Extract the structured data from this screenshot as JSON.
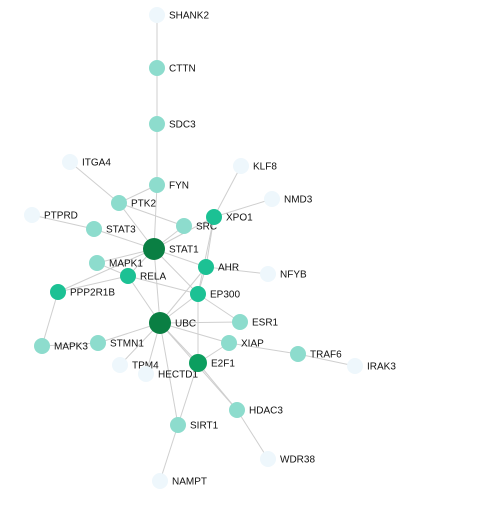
{
  "graph": {
    "level_colors": {
      "1": "#eef7fc",
      "2": "#8ddccd",
      "3": "#1cc194",
      "4": "#0c9e5f",
      "5": "#0a7f43"
    },
    "edge_color": "#cfcfcf",
    "nodes": [
      {
        "id": "SHANK2",
        "label": "SHANK2",
        "level": 1
      },
      {
        "id": "CTTN",
        "label": "CTTN",
        "level": 2
      },
      {
        "id": "SDC3",
        "label": "SDC3",
        "level": 2
      },
      {
        "id": "FYN",
        "label": "FYN",
        "level": 2
      },
      {
        "id": "ITGA4",
        "label": "ITGA4",
        "level": 1
      },
      {
        "id": "KLF8",
        "label": "KLF8",
        "level": 1
      },
      {
        "id": "NMD3",
        "label": "NMD3",
        "level": 1
      },
      {
        "id": "PTK2",
        "label": "PTK2",
        "level": 2
      },
      {
        "id": "PTPRD",
        "label": "PTPRD",
        "level": 1
      },
      {
        "id": "STAT3",
        "label": "STAT3",
        "level": 2
      },
      {
        "id": "SRC",
        "label": "SRC",
        "level": 2
      },
      {
        "id": "XPO1",
        "label": "XPO1",
        "level": 3
      },
      {
        "id": "STAT1",
        "label": "STAT1",
        "level": 5
      },
      {
        "id": "MAPK1",
        "label": "MAPK1",
        "level": 2
      },
      {
        "id": "AHR",
        "label": "AHR",
        "level": 3
      },
      {
        "id": "RELA",
        "label": "RELA",
        "level": 3
      },
      {
        "id": "NFYB",
        "label": "NFYB",
        "level": 1
      },
      {
        "id": "PPP2R1B",
        "label": "PPP2R1B",
        "level": 3
      },
      {
        "id": "EP300",
        "label": "EP300",
        "level": 3
      },
      {
        "id": "UBC",
        "label": "UBC",
        "level": 5
      },
      {
        "id": "ESR1",
        "label": "ESR1",
        "level": 2
      },
      {
        "id": "MAPK3",
        "label": "MAPK3",
        "level": 2
      },
      {
        "id": "STMN1",
        "label": "STMN1",
        "level": 2
      },
      {
        "id": "XIAP",
        "label": "XIAP",
        "level": 2
      },
      {
        "id": "TRAF6",
        "label": "TRAF6",
        "level": 2
      },
      {
        "id": "TPM4",
        "label": "TPM4",
        "level": 1
      },
      {
        "id": "HECTD1",
        "label": "HECTD1",
        "level": 1
      },
      {
        "id": "E2F1",
        "label": "E2F1",
        "level": 4
      },
      {
        "id": "IRAK3",
        "label": "IRAK3",
        "level": 1
      },
      {
        "id": "HDAC3",
        "label": "HDAC3",
        "level": 2
      },
      {
        "id": "SIRT1",
        "label": "SIRT1",
        "level": 2
      },
      {
        "id": "WDR38",
        "label": "WDR38",
        "level": 1
      },
      {
        "id": "NAMPT",
        "label": "NAMPT",
        "level": 1
      }
    ],
    "edges": [
      [
        "SHANK2",
        "CTTN"
      ],
      [
        "CTTN",
        "SDC3"
      ],
      [
        "SDC3",
        "FYN"
      ],
      [
        "FYN",
        "STAT1"
      ],
      [
        "FYN",
        "PTK2"
      ],
      [
        "ITGA4",
        "PTK2"
      ],
      [
        "PTK2",
        "STAT1"
      ],
      [
        "PTK2",
        "SRC"
      ],
      [
        "PTPRD",
        "STAT3"
      ],
      [
        "STAT3",
        "STAT1"
      ],
      [
        "SRC",
        "STAT1"
      ],
      [
        "XPO1",
        "STAT1"
      ],
      [
        "XPO1",
        "KLF8"
      ],
      [
        "XPO1",
        "NMD3"
      ],
      [
        "XPO1",
        "AHR"
      ],
      [
        "XPO1",
        "EP300"
      ],
      [
        "STAT1",
        "AHR"
      ],
      [
        "STAT1",
        "MAPK1"
      ],
      [
        "STAT1",
        "RELA"
      ],
      [
        "STAT1",
        "PPP2R1B"
      ],
      [
        "STAT1",
        "EP300"
      ],
      [
        "STAT1",
        "UBC"
      ],
      [
        "MAPK1",
        "RELA"
      ],
      [
        "AHR",
        "NFYB"
      ],
      [
        "AHR",
        "EP300"
      ],
      [
        "AHR",
        "UBC"
      ],
      [
        "RELA",
        "UBC"
      ],
      [
        "RELA",
        "EP300"
      ],
      [
        "PPP2R1B",
        "MAPK3"
      ],
      [
        "PPP2R1B",
        "RELA"
      ],
      [
        "EP300",
        "UBC"
      ],
      [
        "EP300",
        "E2F1"
      ],
      [
        "EP300",
        "ESR1"
      ],
      [
        "UBC",
        "STMN1"
      ],
      [
        "UBC",
        "TPM4"
      ],
      [
        "UBC",
        "HECTD1"
      ],
      [
        "UBC",
        "E2F1"
      ],
      [
        "UBC",
        "XIAP"
      ],
      [
        "UBC",
        "ESR1"
      ],
      [
        "UBC",
        "SIRT1"
      ],
      [
        "UBC",
        "HDAC3"
      ],
      [
        "STMN1",
        "MAPK3"
      ],
      [
        "XIAP",
        "TRAF6"
      ],
      [
        "XIAP",
        "E2F1"
      ],
      [
        "TRAF6",
        "IRAK3"
      ],
      [
        "E2F1",
        "SIRT1"
      ],
      [
        "E2F1",
        "HDAC3"
      ],
      [
        "HDAC3",
        "WDR38"
      ],
      [
        "SIRT1",
        "NAMPT"
      ]
    ]
  }
}
